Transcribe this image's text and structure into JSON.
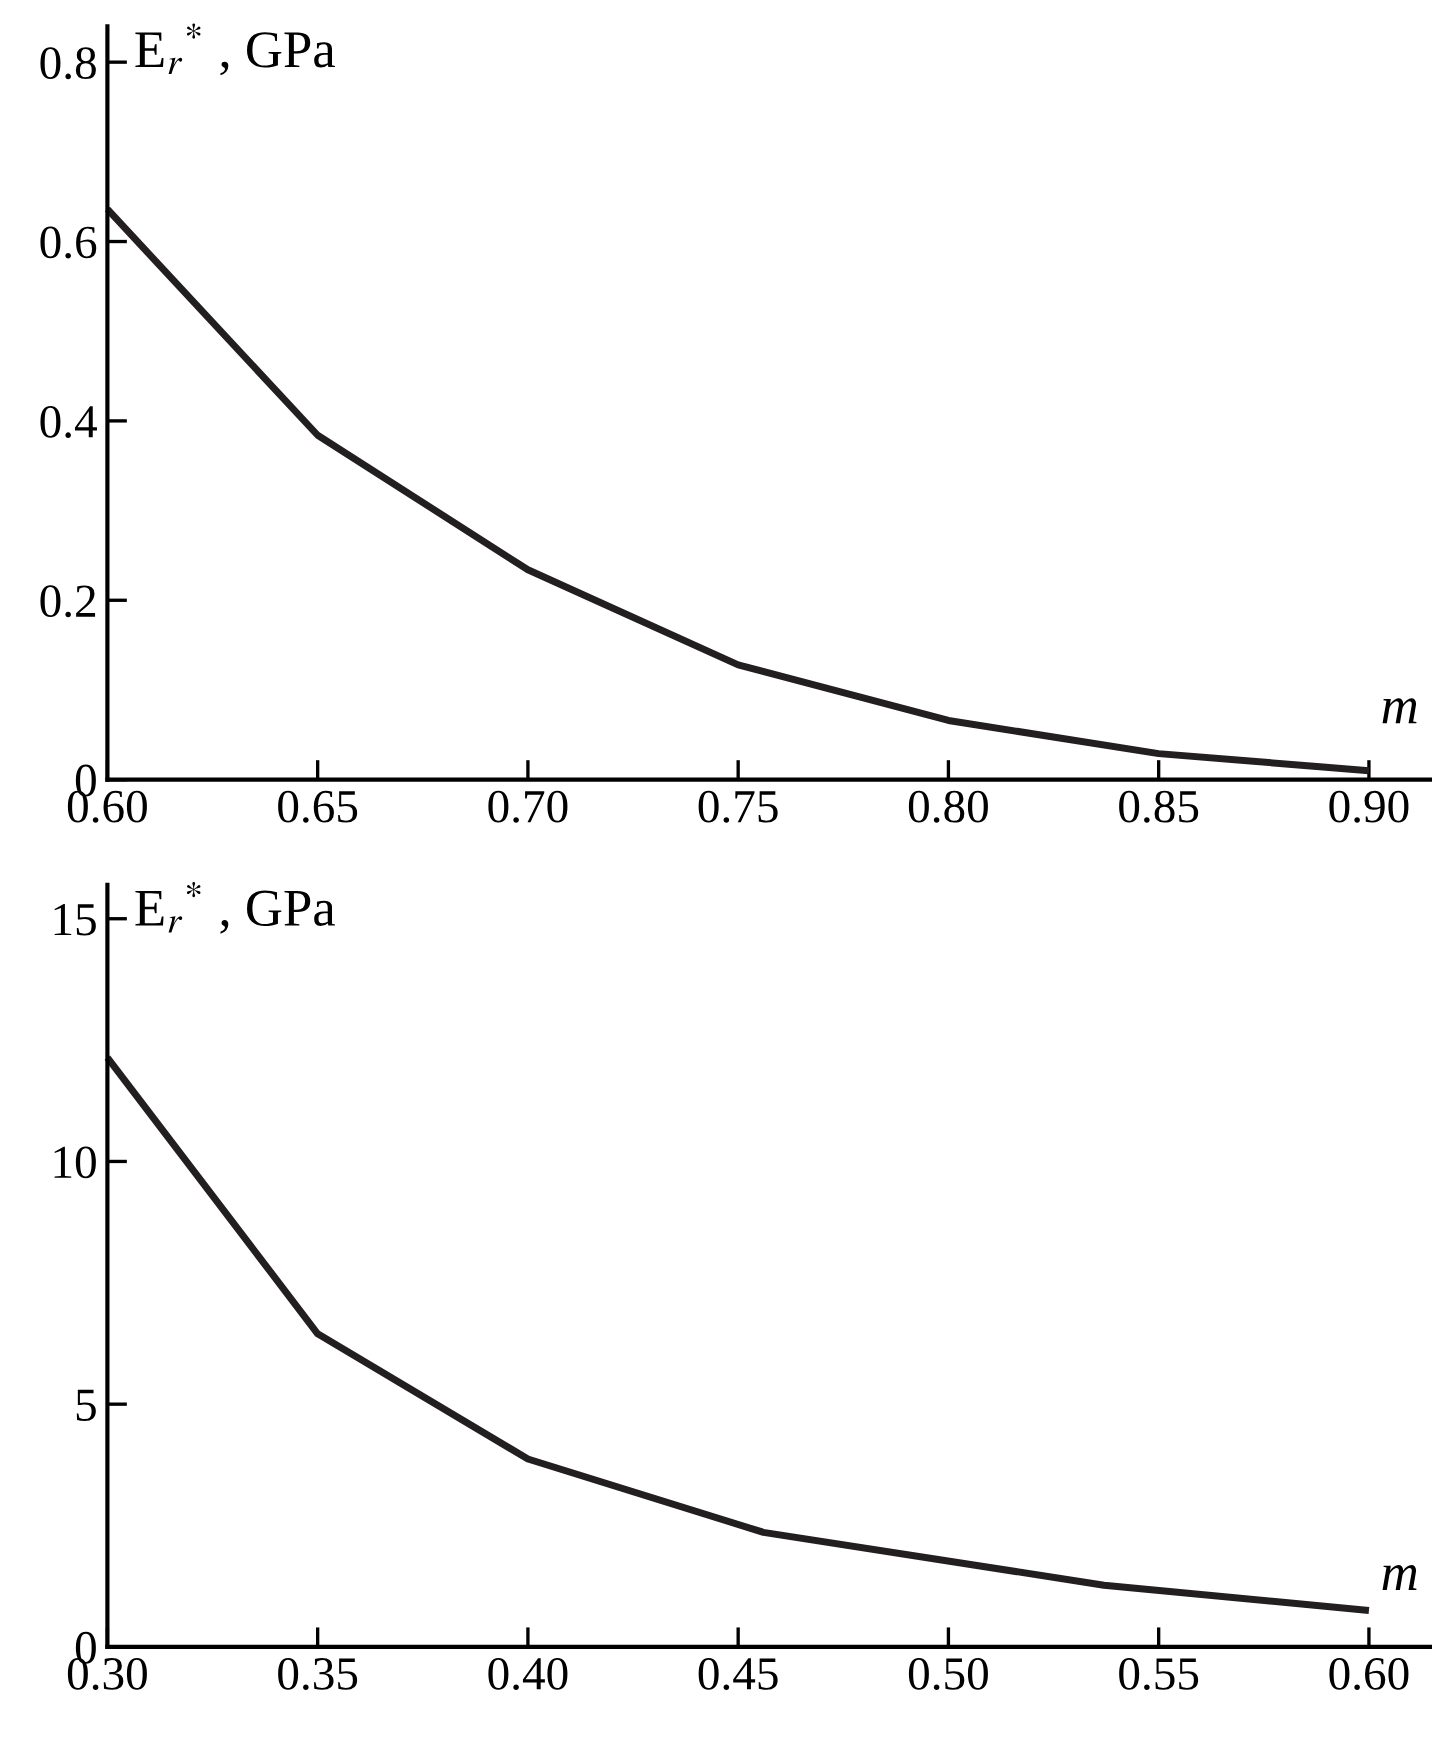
{
  "chart_data": [
    {
      "type": "line",
      "ylabel": "E$_{r}$$^{*}$ , GPa",
      "xlabel": "m",
      "x": [
        0.6,
        0.65,
        0.7,
        0.75,
        0.8,
        0.85,
        0.9
      ],
      "series": [
        {
          "color": "#231f20",
          "values": [
            0.636,
            0.384,
            0.234,
            0.128,
            0.066,
            0.029,
            0.01
          ]
        }
      ],
      "xlim": [
        0.6,
        0.915
      ],
      "ylim": [
        0,
        0.84
      ],
      "xticks": [
        {
          "value": 0.6,
          "label": "0.60"
        },
        {
          "value": 0.65,
          "label": "0.65"
        },
        {
          "value": 0.7,
          "label": "0.70"
        },
        {
          "value": 0.75,
          "label": "0.75"
        },
        {
          "value": 0.8,
          "label": "0.80"
        },
        {
          "value": 0.85,
          "label": "0.85"
        },
        {
          "value": 0.9,
          "label": "0.90"
        }
      ],
      "yticks": [
        0,
        0.2,
        0.4,
        0.6,
        0.8
      ],
      "grid": false,
      "legend": false
    },
    {
      "type": "line",
      "ylabel": "E$_{r}$$^{*}$ , GPa",
      "xlabel": "m",
      "x": [
        0.3,
        0.35,
        0.4,
        0.456,
        0.537,
        0.6
      ],
      "series": [
        {
          "color": "#231f20",
          "values": [
            12.14,
            6.45,
            3.87,
            2.36,
            1.27,
            0.75
          ]
        }
      ],
      "xlim": [
        0.3,
        0.615
      ],
      "ylim": [
        0,
        15.7
      ],
      "xticks": [
        {
          "value": 0.3,
          "label": "0.30"
        },
        {
          "value": 0.35,
          "label": "0.35"
        },
        {
          "value": 0.4,
          "label": "0.40"
        },
        {
          "value": 0.45,
          "label": "0.45"
        },
        {
          "value": 0.5,
          "label": "0.50"
        },
        {
          "value": 0.55,
          "label": "0.55"
        },
        {
          "value": 0.6,
          "label": "0.60"
        }
      ],
      "yticks": [
        0,
        5,
        10,
        15
      ],
      "grid": false,
      "legend": false
    }
  ]
}
